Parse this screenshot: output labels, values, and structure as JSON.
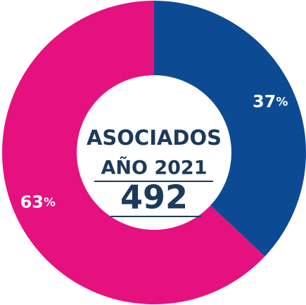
{
  "chart_data": {
    "type": "donut",
    "title": "ASOCIADOS",
    "subtitle": "AÑO 2021",
    "total": 492,
    "values": [
      37,
      63
    ],
    "value_labels": [
      "37%",
      "63%"
    ],
    "colors": [
      "#0d4a94",
      "#e5117f"
    ]
  }
}
